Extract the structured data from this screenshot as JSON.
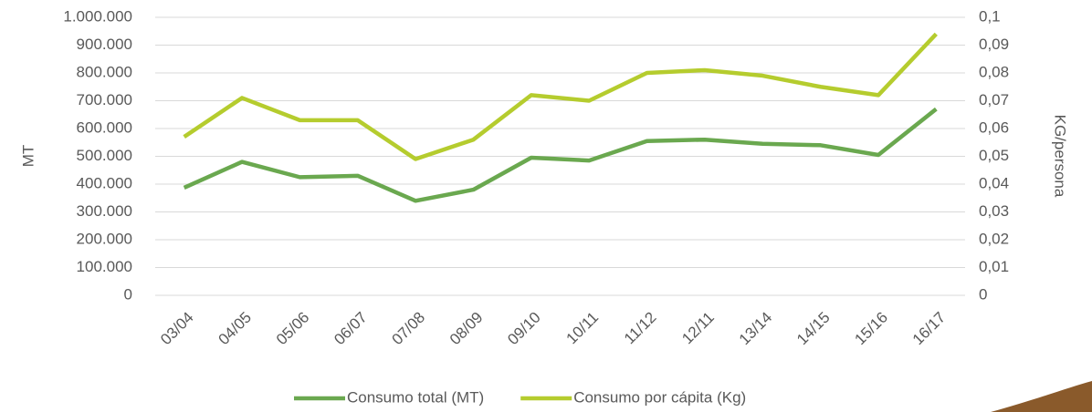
{
  "chart_data": {
    "type": "line",
    "categories": [
      "03/04",
      "04/05",
      "05/06",
      "06/07",
      "07/08",
      "08/09",
      "09/10",
      "10/11",
      "11/12",
      "12/11",
      "13/14",
      "14/15",
      "15/16",
      "16/17"
    ],
    "ylabel": "MT",
    "y2label": "KG/persona",
    "ylim": [
      0,
      1000000
    ],
    "yticks": [
      0,
      {
        "value": 100000,
        "label": "100.000"
      },
      {
        "value": 200000,
        "label": "200.000"
      },
      {
        "value": 300000,
        "label": "300.000"
      },
      {
        "value": 400000,
        "label": "400.000"
      },
      {
        "value": 500000,
        "label": "500.000"
      },
      {
        "value": 600000,
        "label": "600.000"
      },
      {
        "value": 700000,
        "label": "700.000"
      },
      {
        "value": 800000,
        "label": "800.000"
      },
      {
        "value": 900000,
        "label": "900.000"
      },
      {
        "value": 1000000,
        "label": "1.000.000"
      }
    ],
    "y2lim": [
      0,
      0.1
    ],
    "y2ticks": [
      0,
      {
        "value": 0.01,
        "label": "0,01"
      },
      {
        "value": 0.02,
        "label": "0,02"
      },
      {
        "value": 0.03,
        "label": "0,03"
      },
      {
        "value": 0.04,
        "label": "0,04"
      },
      {
        "value": 0.05,
        "label": "0,05"
      },
      {
        "value": 0.06,
        "label": "0,06"
      },
      {
        "value": 0.07,
        "label": "0,07"
      },
      {
        "value": 0.08,
        "label": "0,08"
      },
      {
        "value": 0.09,
        "label": "0,09"
      },
      {
        "value": 0.1,
        "label": "0,1"
      }
    ],
    "grid": true,
    "legend": "bottom",
    "series": [
      {
        "name": "Consumo total (MT)",
        "color": "#6aa84f",
        "values": [
          387000,
          480000,
          425000,
          430000,
          340000,
          380000,
          495000,
          485000,
          555000,
          560000,
          545000,
          540000,
          505000,
          670000
        ]
      },
      {
        "name": "Consumo por cápita (Kg)",
        "color": "#b5cc2e",
        "axis": "y2",
        "values": [
          0.057,
          0.071,
          0.063,
          0.063,
          0.049,
          0.056,
          0.072,
          0.07,
          0.08,
          0.081,
          0.079,
          0.075,
          0.072,
          0.094
        ]
      }
    ]
  }
}
